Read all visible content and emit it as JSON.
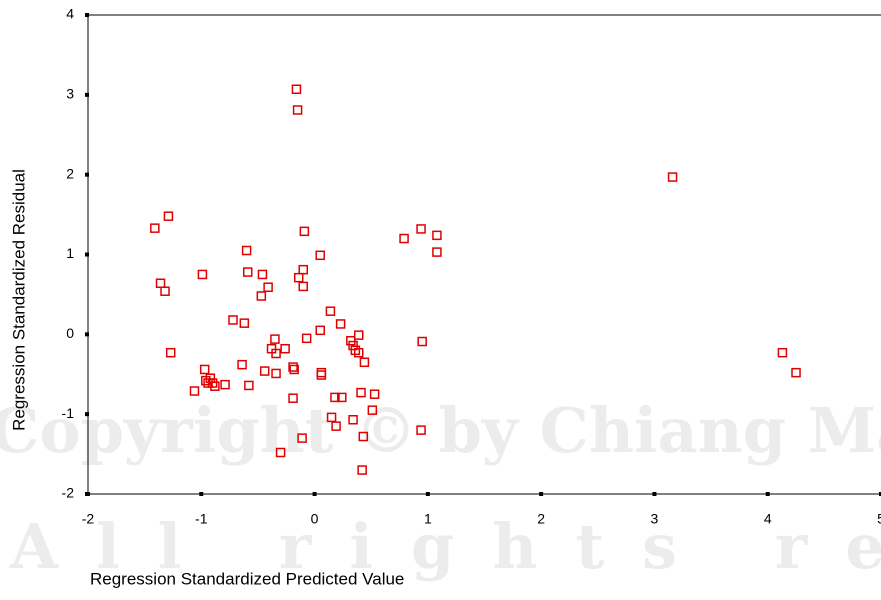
{
  "chart_data": {
    "type": "scatter",
    "xlabel": "Regression Standardized Predicted Value",
    "ylabel": "Regression Standardized Residual",
    "watermark": [
      "Copyright © by Chiang Mai University",
      "All rights reserved"
    ],
    "color": "#e00000",
    "x": [
      -0.16,
      -0.15,
      3.16,
      -1.29,
      -1.41,
      0.94,
      0.79,
      1.08,
      -0.09,
      -0.6,
      0.05,
      1.08,
      -0.99,
      -0.59,
      -0.46,
      -0.1,
      -0.14,
      -1.36,
      -1.32,
      -0.41,
      -0.1,
      -0.47,
      0.14,
      -0.72,
      -0.62,
      0.23,
      0.05,
      -0.35,
      -0.07,
      0.39,
      0.32,
      0.95,
      0.34,
      -0.38,
      -0.26,
      0.36,
      0.39,
      -0.34,
      -1.27,
      4.13,
      0.44,
      -0.64,
      -0.19,
      -0.18,
      -0.97,
      0.06,
      0.06,
      -0.44,
      -0.34,
      4.25,
      -0.96,
      -0.92,
      -0.94,
      -0.9,
      -0.88,
      -0.79,
      -0.58,
      -1.06,
      0.41,
      0.53,
      0.18,
      0.24,
      -0.19,
      0.51,
      0.15,
      0.34,
      0.19,
      0.94,
      0.43,
      -0.11,
      -0.3,
      0.42
    ],
    "values": [
      3.07,
      2.81,
      1.97,
      1.48,
      1.33,
      1.32,
      1.2,
      1.24,
      1.29,
      1.05,
      0.99,
      1.03,
      0.75,
      0.78,
      0.75,
      0.81,
      0.71,
      0.64,
      0.54,
      0.59,
      0.6,
      0.48,
      0.29,
      0.18,
      0.14,
      0.13,
      0.05,
      -0.06,
      -0.05,
      -0.01,
      -0.08,
      -0.09,
      -0.14,
      -0.18,
      -0.18,
      -0.2,
      -0.23,
      -0.24,
      -0.23,
      -0.23,
      -0.35,
      -0.38,
      -0.41,
      -0.44,
      -0.44,
      -0.48,
      -0.51,
      -0.46,
      -0.49,
      -0.48,
      -0.58,
      -0.55,
      -0.61,
      -0.61,
      -0.65,
      -0.63,
      -0.64,
      -0.71,
      -0.73,
      -0.75,
      -0.79,
      -0.79,
      -0.8,
      -0.95,
      -1.04,
      -1.07,
      -1.15,
      -1.2,
      -1.28,
      -1.3,
      -1.48,
      -1.7
    ],
    "xlim": [
      -2,
      5
    ],
    "xticks": [
      -2,
      -1,
      0,
      1,
      2,
      3,
      4,
      5
    ],
    "ylim": [
      -2,
      4
    ],
    "yticks": [
      -2,
      -1,
      0,
      1,
      2,
      3,
      4
    ]
  }
}
